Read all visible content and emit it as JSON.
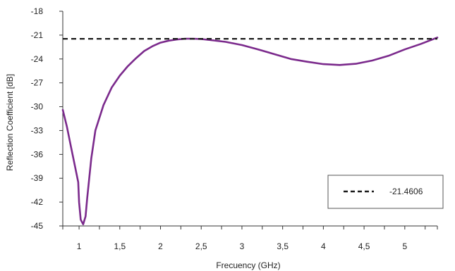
{
  "chart_data": {
    "type": "line",
    "xlabel": "Frecuency (GHz)",
    "ylabel": "Reflection Coefficient [dB]",
    "xlim": [
      0.8,
      5.4
    ],
    "ylim": [
      -45,
      -18
    ],
    "x_ticks": [
      "1",
      "1,5",
      "2",
      "2,5",
      "3",
      "3,5",
      "4",
      "4,5",
      "5"
    ],
    "x_tick_values": [
      1,
      1.5,
      2,
      2.5,
      3,
      3.5,
      4,
      4.5,
      5
    ],
    "y_ticks": [
      "-18",
      "-21",
      "-24",
      "-27",
      "-30",
      "-33",
      "-36",
      "-39",
      "-42",
      "-45"
    ],
    "y_tick_values": [
      -18,
      -21,
      -24,
      -27,
      -30,
      -33,
      -36,
      -39,
      -42,
      -45
    ],
    "series": [
      {
        "color": "#7b2a8c",
        "style": "solid",
        "x": [
          0.8,
          0.85,
          0.9,
          0.95,
          0.99,
          1.0,
          1.02,
          1.05,
          1.08,
          1.1,
          1.15,
          1.2,
          1.3,
          1.4,
          1.5,
          1.6,
          1.7,
          1.8,
          1.9,
          2.0,
          2.1,
          2.2,
          2.3,
          2.4,
          2.5,
          2.6,
          2.8,
          3.0,
          3.2,
          3.4,
          3.6,
          3.8,
          4.0,
          4.2,
          4.4,
          4.6,
          4.8,
          5.0,
          5.2,
          5.4
        ],
        "y": [
          -30.4,
          -32.5,
          -35.0,
          -37.5,
          -39.5,
          -42.0,
          -44.2,
          -44.8,
          -43.8,
          -41.5,
          -36.5,
          -33.0,
          -29.8,
          -27.6,
          -26.1,
          -24.9,
          -23.9,
          -23.0,
          -22.4,
          -21.95,
          -21.7,
          -21.55,
          -21.45,
          -21.45,
          -21.5,
          -21.6,
          -21.85,
          -22.25,
          -22.8,
          -23.4,
          -24.0,
          -24.35,
          -24.65,
          -24.75,
          -24.6,
          -24.2,
          -23.6,
          -22.8,
          -22.1,
          -21.3
        ]
      },
      {
        "name": "-21.4606",
        "color": "#1a1a1a",
        "style": "dashed",
        "x": [
          0.8,
          5.4
        ],
        "y": [
          -21.4606,
          -21.4606
        ]
      }
    ],
    "grid": false,
    "legend_position": "bottom-right"
  }
}
